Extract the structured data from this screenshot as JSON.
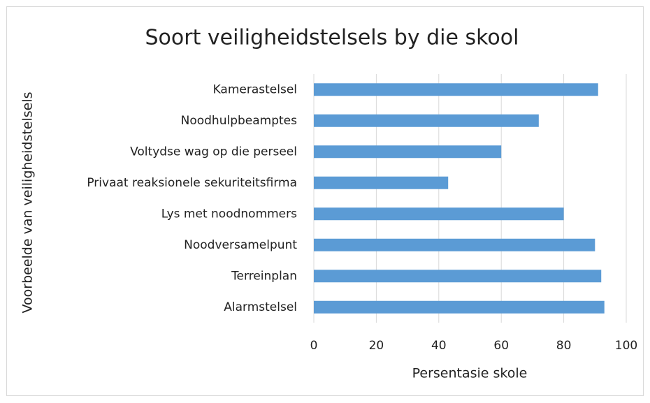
{
  "chart_data": {
    "type": "bar",
    "orientation": "horizontal",
    "title": "Soort veiligheidstelsels by die skool",
    "x_label": "Persentasie skole",
    "y_label": "Voorbeelde van veiligheidstelsels",
    "categories": [
      "Kamerastelsel",
      "Noodhulpbeamptes",
      "Voltydse wag op die perseel",
      "Privaat reaksionele sekuriteitsfirma",
      "Lys met noodnommers",
      "Noodversamelpunt",
      "Terreinplan",
      "Alarmstelsel"
    ],
    "values": [
      91,
      72,
      60,
      43,
      80,
      90,
      92,
      93
    ],
    "color": "#5b9bd5",
    "xlim": [
      0,
      100
    ],
    "xticks": [
      0,
      20,
      40,
      60,
      80,
      100
    ],
    "grid": true
  }
}
